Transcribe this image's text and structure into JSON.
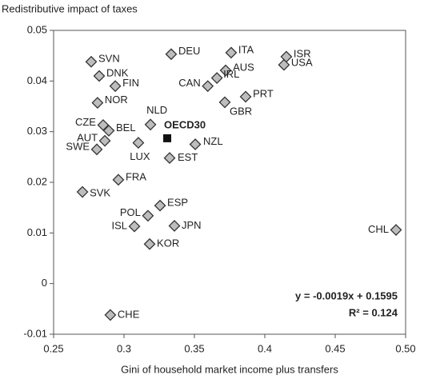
{
  "chart_data": {
    "type": "scatter",
    "title": "Redistributive impact of taxes",
    "x_label": "Gini of household market income plus transfers",
    "annotations": [
      "y = -0.0019x + 0.1595",
      "R² = 0.124"
    ],
    "color": "#bdbdbd",
    "points": [
      {
        "label": "SVN",
        "x": 0.2767,
        "y": 0.0438,
        "marker": "diamond"
      },
      {
        "label": "DNK",
        "x": 0.2824,
        "y": 0.041,
        "marker": "diamond"
      },
      {
        "label": "FIN",
        "x": 0.2938,
        "y": 0.039,
        "marker": "diamond"
      },
      {
        "label": "NOR",
        "x": 0.2812,
        "y": 0.0357,
        "marker": "diamond"
      },
      {
        "label": "CZE",
        "x": 0.2852,
        "y": 0.0313,
        "marker": "diamond"
      },
      {
        "label": "BEL",
        "x": 0.2892,
        "y": 0.0302,
        "marker": "diamond"
      },
      {
        "label": "AUT",
        "x": 0.2864,
        "y": 0.0282,
        "marker": "diamond"
      },
      {
        "label": "SWE",
        "x": 0.2807,
        "y": 0.0265,
        "marker": "diamond"
      },
      {
        "label": "NLD",
        "x": 0.3188,
        "y": 0.0314,
        "marker": "diamond"
      },
      {
        "label": "OECD30",
        "x": 0.3307,
        "y": 0.0287,
        "marker": "square"
      },
      {
        "label": "LUX",
        "x": 0.3102,
        "y": 0.0278,
        "marker": "diamond"
      },
      {
        "label": "EST",
        "x": 0.3324,
        "y": 0.0248,
        "marker": "diamond"
      },
      {
        "label": "NZL",
        "x": 0.3506,
        "y": 0.0275,
        "marker": "diamond"
      },
      {
        "label": "DEU",
        "x": 0.3335,
        "y": 0.0453,
        "marker": "diamond"
      },
      {
        "label": "ITA",
        "x": 0.3761,
        "y": 0.0456,
        "marker": "diamond"
      },
      {
        "label": "AUS",
        "x": 0.3722,
        "y": 0.0421,
        "marker": "diamond"
      },
      {
        "label": "CAN",
        "x": 0.3595,
        "y": 0.039,
        "marker": "diamond"
      },
      {
        "label": "IRL",
        "x": 0.366,
        "y": 0.0406,
        "marker": "diamond"
      },
      {
        "label": "GBR",
        "x": 0.3716,
        "y": 0.0358,
        "marker": "diamond"
      },
      {
        "label": "PRT",
        "x": 0.3864,
        "y": 0.0369,
        "marker": "diamond"
      },
      {
        "label": "ISR",
        "x": 0.4153,
        "y": 0.0448,
        "marker": "diamond"
      },
      {
        "label": "USA",
        "x": 0.4136,
        "y": 0.0432,
        "marker": "diamond"
      },
      {
        "label": "FRA",
        "x": 0.296,
        "y": 0.0205,
        "marker": "diamond"
      },
      {
        "label": "SVK",
        "x": 0.2705,
        "y": 0.0181,
        "marker": "diamond"
      },
      {
        "label": "ESP",
        "x": 0.3256,
        "y": 0.0154,
        "marker": "diamond"
      },
      {
        "label": "POL",
        "x": 0.317,
        "y": 0.0134,
        "marker": "diamond"
      },
      {
        "label": "ISL",
        "x": 0.3074,
        "y": 0.0113,
        "marker": "diamond"
      },
      {
        "label": "JPN",
        "x": 0.3358,
        "y": 0.0114,
        "marker": "diamond"
      },
      {
        "label": "KOR",
        "x": 0.3182,
        "y": 0.0078,
        "marker": "diamond"
      },
      {
        "label": "CHL",
        "x": 0.4932,
        "y": 0.0106,
        "marker": "diamond"
      },
      {
        "label": "CHE",
        "x": 0.2903,
        "y": -0.0062,
        "marker": "diamond"
      }
    ],
    "xlim": [
      0.25,
      0.5
    ],
    "xticks": [
      0.25,
      0.3,
      0.35,
      0.4,
      0.45,
      {
        "value": 0.5,
        "label": "0.50"
      }
    ],
    "ylim": [
      -0.01,
      0.05
    ],
    "yticks": [
      -0.01,
      0,
      0.01,
      0.02,
      0.03,
      0.04,
      0.05
    ]
  }
}
